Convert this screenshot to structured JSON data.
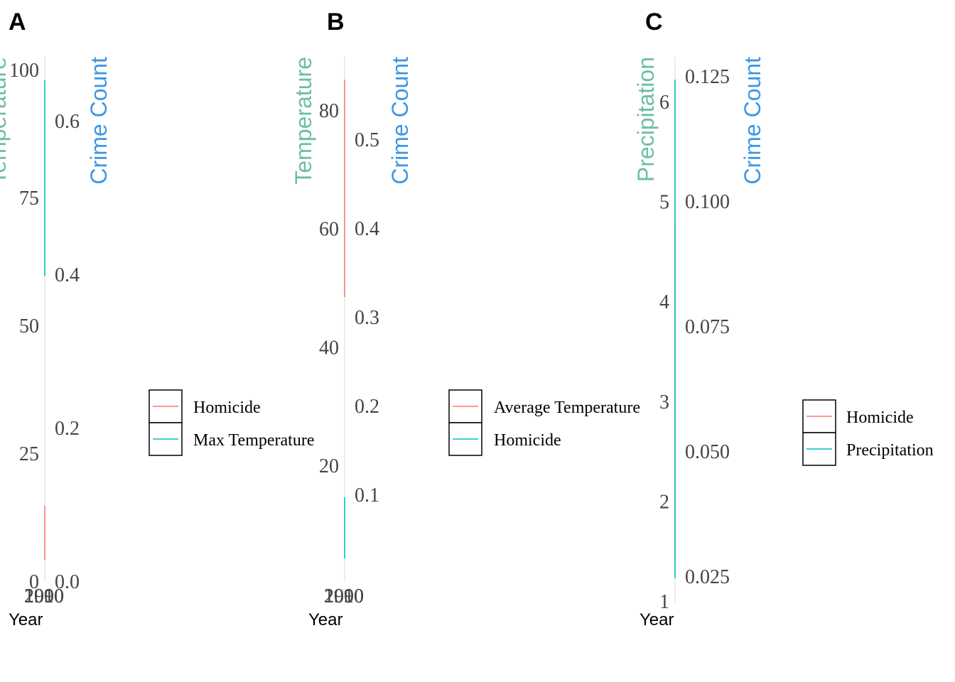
{
  "chart_data": [
    {
      "type": "line",
      "panel": "A",
      "xlabel": "Year",
      "x_ticks": [
        "1990",
        "2000",
        "2010"
      ],
      "ylabel_left": "Temperature",
      "ylabel_right": "Crime Count",
      "left_axis": {
        "ticks": [
          0,
          25,
          50,
          75,
          100
        ],
        "lim": [
          0,
          100
        ]
      },
      "right_axis": {
        "ticks": [
          "0.0",
          "0.2",
          "0.4",
          "0.6"
        ],
        "lim": [
          0,
          0.68
        ]
      },
      "legend_position": "right",
      "series": [
        {
          "name": "Homicide",
          "color": "#F8766D",
          "axis": "right",
          "values": [
            0.028,
            0.097
          ]
        },
        {
          "name": "Max Temperature",
          "color": "#00BFC4",
          "axis": "left",
          "values": [
            60.5,
            98
          ]
        }
      ]
    },
    {
      "type": "line",
      "panel": "B",
      "xlabel": "Year",
      "x_ticks": [
        "1990",
        "2000",
        "2010"
      ],
      "ylabel_left": "Temperature",
      "ylabel_right": "Crime Count",
      "left_axis": {
        "ticks": [
          20,
          40,
          60,
          80
        ],
        "lim": [
          3.5,
          87
        ]
      },
      "right_axis": {
        "ticks": [
          "0.1",
          "0.2",
          "0.3",
          "0.4",
          "0.5"
        ],
        "lim": [
          0.008,
          0.584
        ]
      },
      "legend_position": "right",
      "series": [
        {
          "name": "Average Temperature",
          "color": "#F8766D",
          "axis": "left",
          "values": [
            48.5,
            85
          ]
        },
        {
          "name": "Homicide",
          "color": "#00BFC4",
          "axis": "right",
          "values": [
            0.03,
            0.1
          ]
        }
      ]
    },
    {
      "type": "line",
      "panel": "C",
      "xlabel": "Year",
      "x_ticks": [],
      "ylabel_left": "Precipitation",
      "ylabel_right": "Crime Count",
      "left_axis": {
        "ticks": [
          1,
          2,
          3,
          4,
          5,
          6
        ],
        "lim": [
          1,
          6.5
        ]
      },
      "right_axis": {
        "ticks": [
          "0.025",
          "0.050",
          "0.075",
          "0.100",
          "0.125"
        ],
        "lim": [
          0.0195,
          0.13
        ]
      },
      "legend_position": "right",
      "series": [
        {
          "name": "Homicide",
          "color": "#F8766D",
          "axis": "right",
          "values": [
            0.028,
            0.098
          ]
        },
        {
          "name": "Precipitation",
          "color": "#00BFC4",
          "axis": "left",
          "values": [
            1.25,
            6.2
          ]
        }
      ]
    }
  ],
  "colors": {
    "left_title": "#6BBFA3",
    "right_title": "#3C96E6"
  }
}
